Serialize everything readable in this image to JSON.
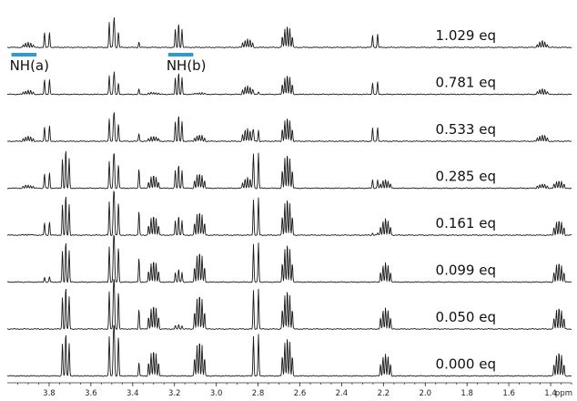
{
  "chart_data": {
    "type": "line",
    "subtype": "stacked 1H NMR spectra (titration)",
    "x_axis": {
      "unit_label": "ppm",
      "reversed": true,
      "range": [
        4.0,
        1.3
      ],
      "ticks": [
        "3.8",
        "3.6",
        "3.4",
        "3.2",
        "3.0",
        "2.8",
        "2.6",
        "2.4",
        "2.2",
        "2.0",
        "1.8",
        "1.6",
        "1.4"
      ],
      "tick_values": [
        3.8,
        3.6,
        3.4,
        3.2,
        3.0,
        2.8,
        2.6,
        2.4,
        2.2,
        2.0,
        1.8,
        1.6,
        1.4
      ]
    },
    "grid": false,
    "series": [
      {
        "name": "1.029 eq",
        "equivalents": 1.029
      },
      {
        "name": "0.781 eq",
        "equivalents": 0.781
      },
      {
        "name": "0.533 eq",
        "equivalents": 0.533
      },
      {
        "name": "0.285 eq",
        "equivalents": 0.285
      },
      {
        "name": "0.161 eq",
        "equivalents": 0.161
      },
      {
        "name": "0.099 eq",
        "equivalents": 0.099
      },
      {
        "name": "0.050 eq",
        "equivalents": 0.05
      },
      {
        "name": "0.000 eq",
        "equivalents": 0.0
      }
    ],
    "annotations": [
      {
        "text": "NH(a)",
        "ppm_from": 3.98,
        "ppm_to": 3.86,
        "color": "#2a9bd6"
      },
      {
        "text": "NH(b)",
        "ppm_from": 3.23,
        "ppm_to": 3.11,
        "color": "#2a9bd6"
      }
    ],
    "peaks": [
      {
        "ppm": 3.72,
        "multiplet": "t",
        "heights": [
          0,
          0,
          0,
          0.9,
          0.93,
          0.95,
          0.98,
          1.0
        ]
      },
      {
        "ppm": 3.5,
        "multiplet": "d",
        "heights": [
          0.6,
          0.45,
          0.55,
          0.65,
          0.8,
          0.85,
          0.9,
          0.95
        ]
      },
      {
        "ppm": 3.48,
        "multiplet": "d",
        "heights": [
          0.35,
          0.25,
          0.4,
          0.55,
          0.75,
          0.8,
          0.85,
          0.9
        ]
      },
      {
        "ppm": 3.37,
        "multiplet": "s",
        "heights": [
          0.12,
          0.12,
          0.18,
          0.45,
          0.55,
          0.55,
          0.45,
          0.3
        ]
      },
      {
        "ppm": 3.3,
        "multiplet": "m",
        "heights": [
          0,
          0.05,
          0.12,
          0.3,
          0.45,
          0.5,
          0.55,
          0.6
        ]
      },
      {
        "ppm": 3.18,
        "multiplet": "t",
        "heights": [
          0.55,
          0.5,
          0.6,
          0.55,
          0.45,
          0.3,
          0.1,
          0
        ]
      },
      {
        "ppm": 3.08,
        "multiplet": "m",
        "heights": [
          0,
          0.04,
          0.15,
          0.35,
          0.55,
          0.7,
          0.8,
          0.82
        ]
      },
      {
        "ppm": 2.85,
        "multiplet": "m",
        "heights": [
          0.2,
          0.2,
          0.3,
          0.25,
          0,
          0,
          0,
          0
        ]
      },
      {
        "ppm": 2.81,
        "multiplet": "d",
        "heights": [
          0,
          0.05,
          0.25,
          0.8,
          0.85,
          0.9,
          0.92,
          0.95
        ]
      },
      {
        "ppm": 2.66,
        "multiplet": "m",
        "heights": [
          0.5,
          0.45,
          0.55,
          0.8,
          0.85,
          0.88,
          0.9,
          0.9
        ]
      },
      {
        "ppm": 2.24,
        "multiplet": "d",
        "heights": [
          0.3,
          0.28,
          0.32,
          0.2,
          0.05,
          0,
          0,
          0
        ]
      },
      {
        "ppm": 2.19,
        "multiplet": "m",
        "heights": [
          0,
          0,
          0,
          0.2,
          0.38,
          0.45,
          0.5,
          0.52
        ]
      },
      {
        "ppm": 1.44,
        "multiplet": "m",
        "heights": [
          0.15,
          0.13,
          0.15,
          0.1,
          0,
          0,
          0,
          0
        ]
      },
      {
        "ppm": 1.36,
        "multiplet": "m",
        "heights": [
          0,
          0,
          0,
          0.18,
          0.35,
          0.45,
          0.5,
          0.55
        ]
      },
      {
        "ppm": 3.9,
        "multiplet": "m",
        "heights": [
          0.12,
          0.1,
          0.12,
          0.08,
          0.02,
          0,
          0,
          0
        ]
      },
      {
        "ppm": 3.81,
        "multiplet": "d",
        "heights": [
          0.35,
          0.35,
          0.35,
          0.35,
          0.3,
          0.12,
          0,
          0
        ]
      }
    ]
  }
}
